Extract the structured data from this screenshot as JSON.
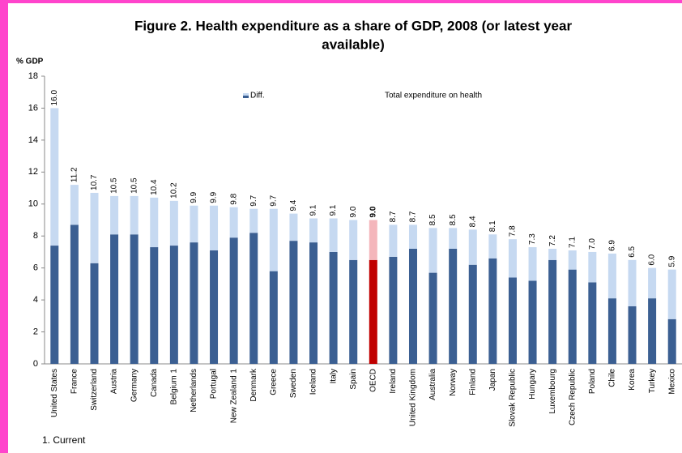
{
  "chart_data": {
    "type": "stacked_bar",
    "title": [
      "Figure 2. Health expenditure as a share of GDP, 2008 (or latest year",
      "available)"
    ],
    "y_label": "% GDP",
    "footnote": "1. Current",
    "legend": [
      "Diff.",
      "Total expenditure on health"
    ],
    "categories": [
      "United States",
      "France",
      "Switzerland",
      "Austria",
      "Germany",
      "Canada",
      "Belgium 1",
      "Netherlands",
      "Portugal",
      "New Zealand 1",
      "Denmark",
      "Greece",
      "Sweden",
      "Iceland",
      "Italy",
      "Spain",
      "OECD",
      "Ireland",
      "United Kingdom",
      "Australia",
      "Norway",
      "Finland",
      "Japan",
      "Slovak Republic",
      "Hungary",
      "Luxembourg",
      "Czech Republic",
      "Poland",
      "Chile",
      "Korea",
      "Turkey",
      "Mexico"
    ],
    "series": [
      {
        "color": "#3b5f92",
        "values": [
          7.4,
          8.7,
          6.3,
          8.1,
          8.1,
          7.3,
          7.4,
          7.6,
          7.1,
          7.9,
          8.2,
          5.8,
          7.7,
          7.6,
          7.0,
          6.5,
          6.5,
          6.7,
          7.2,
          5.7,
          7.2,
          6.2,
          6.6,
          5.4,
          5.2,
          6.5,
          5.9,
          5.1,
          4.1,
          3.6,
          4.1,
          2.8
        ]
      },
      {
        "color": "#c6d9f1",
        "values": [
          8.6,
          2.5,
          4.4,
          2.4,
          2.4,
          3.1,
          2.8,
          2.3,
          2.8,
          1.9,
          1.5,
          3.9,
          1.7,
          1.5,
          2.1,
          2.5,
          2.5,
          2.0,
          1.5,
          2.8,
          1.3,
          2.2,
          1.5,
          2.4,
          2.1,
          0.7,
          1.2,
          1.9,
          2.8,
          2.9,
          1.9,
          3.1
        ]
      }
    ],
    "highlight_index": 16,
    "highlight_colors": [
      "#c00000",
      "#f4b6bb"
    ],
    "totals": [
      16.0,
      11.2,
      10.7,
      10.5,
      10.5,
      10.4,
      10.2,
      9.9,
      9.9,
      9.8,
      9.7,
      9.7,
      9.4,
      9.1,
      9.1,
      9.0,
      9.0,
      8.7,
      8.7,
      8.5,
      8.5,
      8.4,
      8.1,
      7.8,
      7.3,
      7.2,
      7.1,
      7.0,
      6.9,
      6.5,
      6.0,
      5.9
    ],
    "total_labels": [
      "16.0",
      "11.2",
      "10.7",
      "10.5",
      "10.5",
      "10.4",
      "10.2",
      "9.9",
      "9.9",
      "9.8",
      "9.7",
      "9.7",
      "9.4",
      "9.1",
      "9.1",
      "9.0",
      "9.0",
      "8.7",
      "8.7",
      "8.5",
      "8.5",
      "8.4",
      "8.1",
      "7.8",
      "7.3",
      "7.2",
      "7.1",
      "7.0",
      "6.9",
      "6.5",
      "6.0",
      "5.9"
    ],
    "ylim": [
      0,
      18
    ],
    "yticks": [
      0,
      2,
      4,
      6,
      8,
      10,
      12,
      14,
      16,
      18
    ]
  }
}
